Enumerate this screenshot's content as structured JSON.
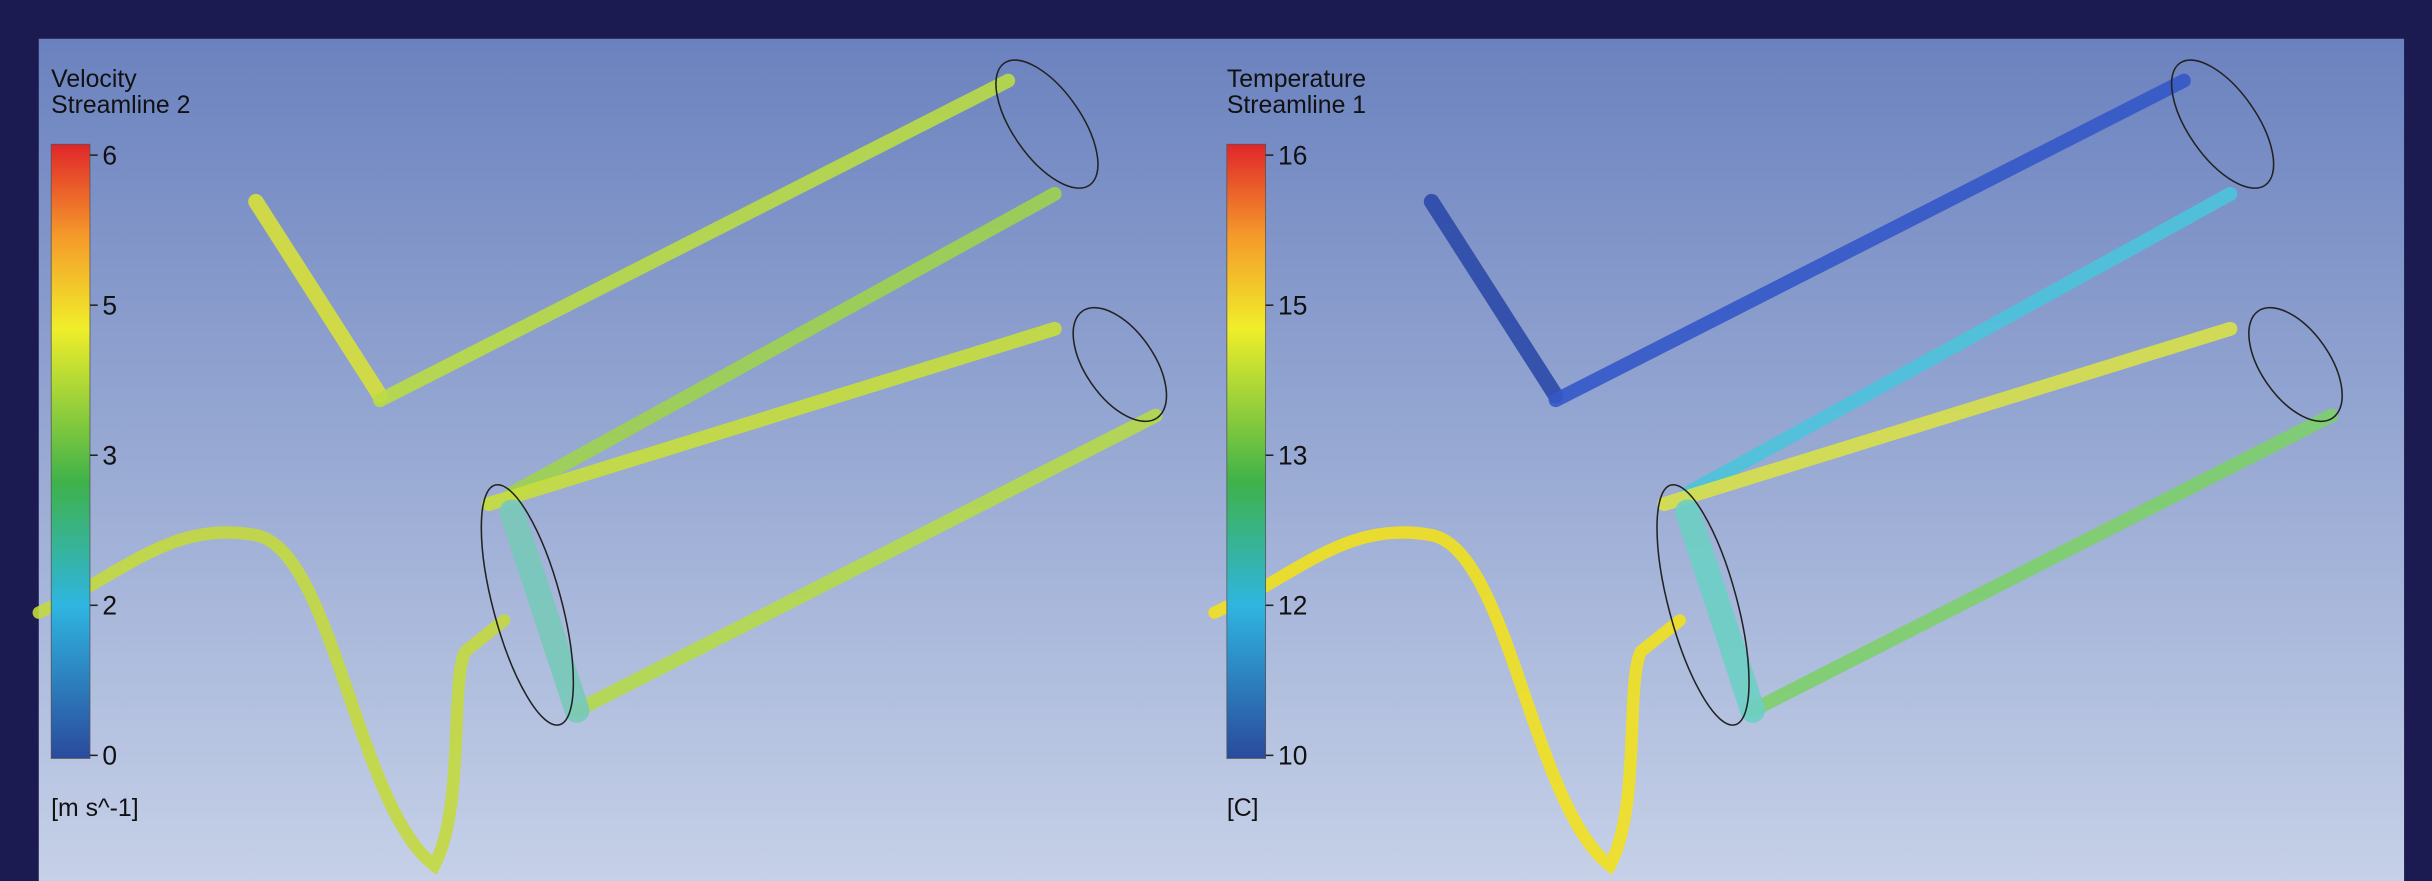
{
  "panels": [
    {
      "title": "Velocity",
      "subtitle": "Streamline 2",
      "ticks": [
        6,
        5,
        3,
        2,
        0
      ],
      "unit": "[m s^-1]"
    },
    {
      "title": "Temperature",
      "subtitle": "Streamline 1",
      "ticks": [
        16,
        15,
        13,
        12,
        10
      ],
      "unit": "[C]"
    }
  ]
}
